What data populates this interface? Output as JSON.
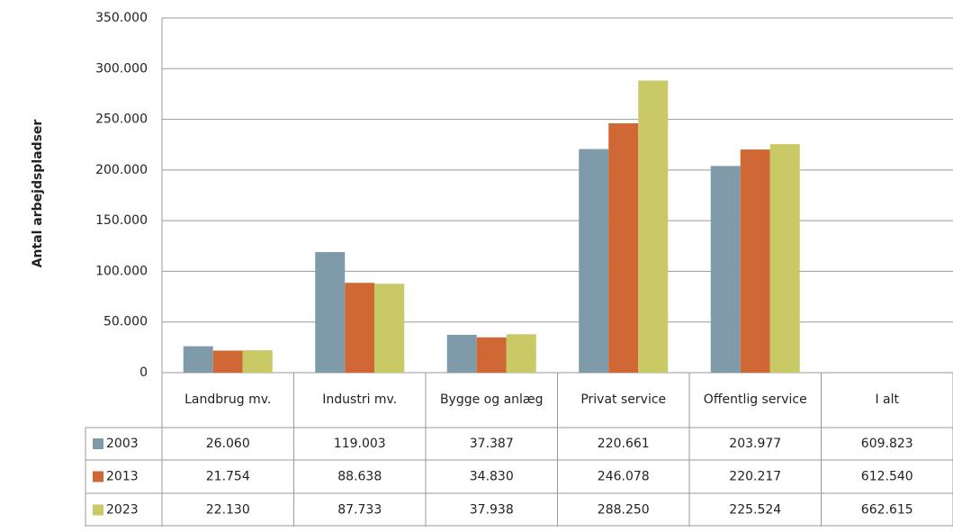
{
  "chart_data": {
    "type": "bar",
    "y_label": "Antal arbejdspladser",
    "categories": [
      "Landbrug mv.",
      "Industri mv.",
      "Bygge og anlæg",
      "Privat service",
      "Offentlig service",
      "I alt"
    ],
    "series": [
      {
        "name": "2003",
        "color": "#7f9aa8",
        "values": [
          26060,
          119003,
          37387,
          220661,
          203977,
          609823
        ],
        "value_labels": [
          "26.060",
          "119.003",
          "37.387",
          "220.661",
          "203.977",
          "609.823"
        ]
      },
      {
        "name": "2013",
        "color": "#cf6834",
        "values": [
          21754,
          88638,
          34830,
          246078,
          220217,
          612540
        ],
        "value_labels": [
          "21.754",
          "88.638",
          "34.830",
          "246.078",
          "220.217",
          "612.540"
        ]
      },
      {
        "name": "2023",
        "color": "#c9c966",
        "values": [
          22130,
          87733,
          37938,
          288250,
          225524,
          662615
        ],
        "value_labels": [
          "22.130",
          "87.733",
          "37.938",
          "288.250",
          "225.524",
          "662.615"
        ]
      }
    ],
    "ylim": [
      0,
      350000
    ],
    "yticks": [
      0,
      {
        "value": 50000,
        "label": "50.000"
      },
      {
        "value": 100000,
        "label": "100.000"
      },
      {
        "value": 150000,
        "label": "150.000"
      },
      {
        "value": 200000,
        "label": "200.000"
      },
      {
        "value": 250000,
        "label": "250.000"
      },
      {
        "value": 300000,
        "label": "300.000"
      },
      {
        "value": 350000,
        "label": "350.000"
      }
    ],
    "grid": true
  }
}
